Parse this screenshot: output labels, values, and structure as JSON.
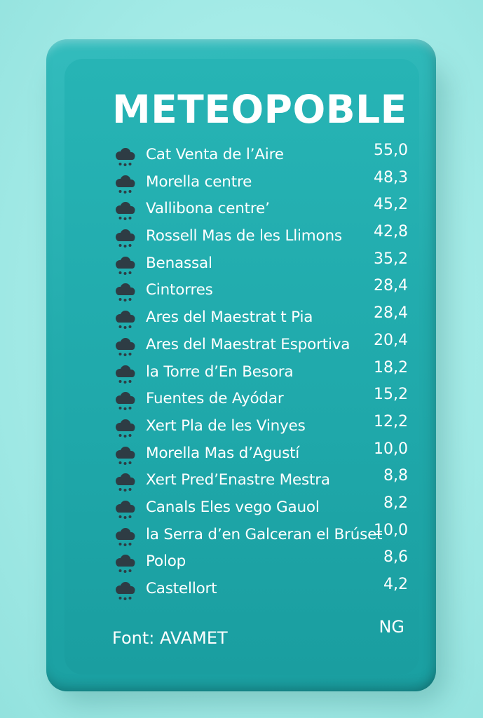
{
  "title": "METEOPOBLE",
  "icon": "rain-cloud-icon",
  "colors": {
    "background": "#a4ebe7",
    "panel": "#22abac",
    "text": "#ffffff",
    "icon": "#2e3c44"
  },
  "stations": [
    {
      "name": "Cat Venta de l’Aire",
      "value": "55,0"
    },
    {
      "name": "Morella centre",
      "value": "48,3"
    },
    {
      "name": "Vallibona centre’",
      "value": "45,2"
    },
    {
      "name": "Rossell Mas de les Llimons",
      "value": "42,8"
    },
    {
      "name": "Benassal",
      "value": "35,2"
    },
    {
      "name": "Cintorres",
      "value": "28,4"
    },
    {
      "name": "Ares del Maestrat t Pia",
      "value": "28,4"
    },
    {
      "name": "Ares del Maestrat Esportiva",
      "value": "20,4"
    },
    {
      "name": "la Torre d’En Besora",
      "value": "18,2"
    },
    {
      "name": "Fuentes de Ayódar",
      "value": "15,2"
    },
    {
      "name": "Xert Pla de les Vinyes",
      "value": "12,2"
    },
    {
      "name": "Morella Mas d’Agustí",
      "value": "10,0"
    },
    {
      "name": "Xert Pred’Enastre Mestra",
      "value": "8,8"
    },
    {
      "name": "Canals Eles vego Gauol",
      "value": "8,2"
    },
    {
      "name": "la Serra d’en Galceran el Brúset",
      "value": "10,0"
    },
    {
      "name": "Polop",
      "value": "8,6"
    },
    {
      "name": "Castellort",
      "value": "4,2"
    }
  ],
  "footer": {
    "source": "Font: AVAMET",
    "tag": "NG"
  }
}
